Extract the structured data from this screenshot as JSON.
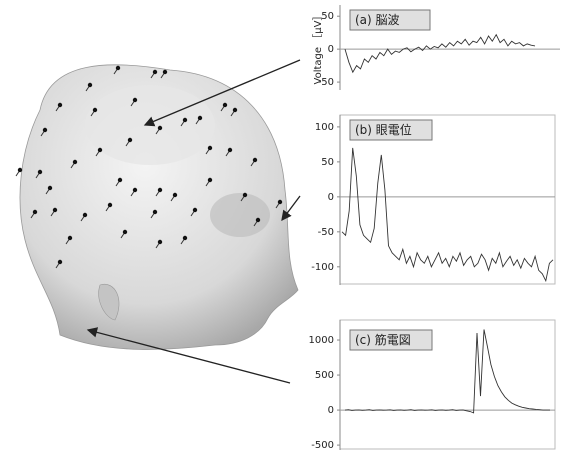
{
  "chart_data": [
    {
      "type": "line",
      "title": "(a) 脳波",
      "ylabel": "Voltage ［μV］",
      "color": "#333333",
      "ylim": [
        -62,
        67
      ],
      "yticks": [
        50,
        0,
        -50
      ],
      "values": [
        0,
        -20,
        -35,
        -25,
        -30,
        -15,
        -20,
        -10,
        -15,
        -5,
        -10,
        0,
        -8,
        -3,
        -5,
        0,
        2,
        -4,
        0,
        3,
        -2,
        5,
        0,
        4,
        2,
        8,
        3,
        10,
        5,
        12,
        8,
        15,
        6,
        12,
        10,
        18,
        8,
        20,
        12,
        22,
        10,
        15,
        5,
        12,
        8,
        10,
        5,
        8,
        6,
        5
      ]
    },
    {
      "type": "line",
      "title": "(b) 眼電位",
      "color": "#333333",
      "ylim": [
        -126,
        117
      ],
      "yticks": [
        100,
        50,
        0,
        -50,
        -100
      ],
      "values": [
        -50,
        -55,
        -20,
        70,
        30,
        -40,
        -55,
        -60,
        -65,
        -45,
        20,
        60,
        10,
        -70,
        -80,
        -85,
        -90,
        -75,
        -95,
        -85,
        -100,
        -80,
        -90,
        -95,
        -85,
        -100,
        -90,
        -80,
        -95,
        -88,
        -100,
        -85,
        -92,
        -80,
        -98,
        -90,
        -85,
        -100,
        -95,
        -82,
        -90,
        -105,
        -88,
        -95,
        -80,
        -100,
        -92,
        -85,
        -98,
        -90,
        -102,
        -88,
        -95,
        -100,
        -85,
        -105,
        -110,
        -120,
        -95,
        -90
      ]
    },
    {
      "type": "line",
      "title": "(c) 筋電図",
      "color": "#333333",
      "ylim": [
        -570,
        1286
      ],
      "yticks": [
        1000,
        500,
        0,
        -500
      ],
      "values": [
        0,
        5,
        -5,
        0,
        3,
        -3,
        0,
        5,
        -5,
        0,
        2,
        -2,
        0,
        4,
        -4,
        0,
        3,
        -3,
        0,
        5,
        -5,
        0,
        2,
        -2,
        0,
        4,
        -4,
        0,
        3,
        -3,
        0,
        5,
        -5,
        0,
        2,
        -10,
        -20,
        -40,
        1100,
        200,
        1150,
        900,
        650,
        480,
        350,
        260,
        190,
        140,
        100,
        75,
        55,
        40,
        30,
        20,
        15,
        10,
        5,
        0,
        0,
        0
      ]
    }
  ]
}
